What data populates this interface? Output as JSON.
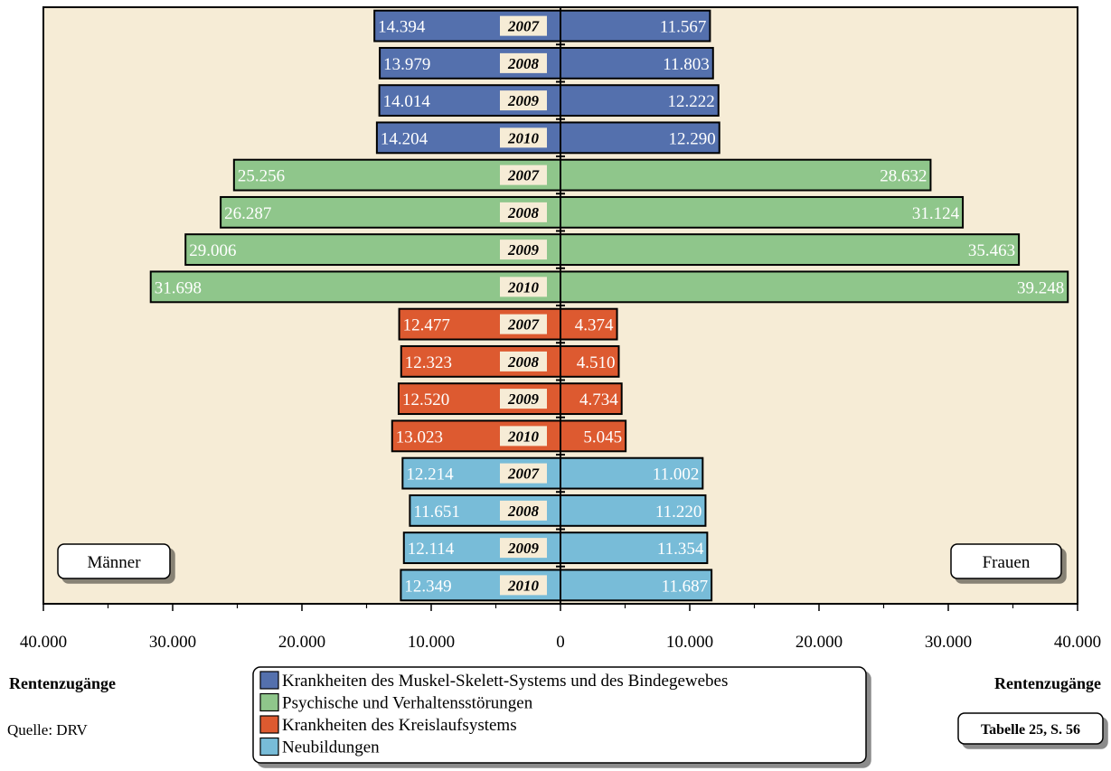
{
  "chart_data": {
    "type": "bar",
    "orientation": "horizontal",
    "layout": "butterfly",
    "left_label": "Männer",
    "right_label": "Frauen",
    "left_axis_title": "Rentenzugänge",
    "right_axis_title": "Rentenzugänge",
    "xlim": [
      -40000,
      40000
    ],
    "x_ticks": [
      {
        "value": -40000,
        "label": "40.000"
      },
      {
        "value": -30000,
        "label": "30.000"
      },
      {
        "value": -20000,
        "label": "20.000"
      },
      {
        "value": -10000,
        "label": "10.000"
      },
      {
        "value": 0,
        "label": "0"
      },
      {
        "value": 10000,
        "label": "10.000"
      },
      {
        "value": 20000,
        "label": "20.000"
      },
      {
        "value": 30000,
        "label": "30.000"
      },
      {
        "value": 40000,
        "label": "40.000"
      }
    ],
    "groups": [
      {
        "name": "Krankheiten des Muskel-Skelett-Systems und des Bindegewebes",
        "color": "#5470ad",
        "rows": [
          {
            "year": "2007",
            "men": 14394,
            "men_label": "14.394",
            "women": 11567,
            "women_label": "11.567"
          },
          {
            "year": "2008",
            "men": 13979,
            "men_label": "13.979",
            "women": 11803,
            "women_label": "11.803"
          },
          {
            "year": "2009",
            "men": 14014,
            "men_label": "14.014",
            "women": 12222,
            "women_label": "12.222"
          },
          {
            "year": "2010",
            "men": 14204,
            "men_label": "14.204",
            "women": 12290,
            "women_label": "12.290"
          }
        ]
      },
      {
        "name": "Psychische und Verhaltensstörungen",
        "color": "#8fc68b",
        "rows": [
          {
            "year": "2007",
            "men": 25256,
            "men_label": "25.256",
            "women": 28632,
            "women_label": "28.632"
          },
          {
            "year": "2008",
            "men": 26287,
            "men_label": "26.287",
            "women": 31124,
            "women_label": "31.124"
          },
          {
            "year": "2009",
            "men": 29006,
            "men_label": "29.006",
            "women": 35463,
            "women_label": "35.463"
          },
          {
            "year": "2010",
            "men": 31698,
            "men_label": "31.698",
            "women": 39248,
            "women_label": "39.248"
          }
        ]
      },
      {
        "name": "Krankheiten des Kreislaufsystems",
        "color": "#dd5a30",
        "rows": [
          {
            "year": "2007",
            "men": 12477,
            "men_label": "12.477",
            "women": 4374,
            "women_label": "4.374"
          },
          {
            "year": "2008",
            "men": 12323,
            "men_label": "12.323",
            "women": 4510,
            "women_label": "4.510"
          },
          {
            "year": "2009",
            "men": 12520,
            "men_label": "12.520",
            "women": 4734,
            "women_label": "4.734"
          },
          {
            "year": "2010",
            "men": 13023,
            "men_label": "13.023",
            "women": 5045,
            "women_label": "5.045"
          }
        ]
      },
      {
        "name": "Neubildungen",
        "color": "#78bcd8",
        "rows": [
          {
            "year": "2007",
            "men": 12214,
            "men_label": "12.214",
            "women": 11002,
            "women_label": "11.002"
          },
          {
            "year": "2008",
            "men": 11651,
            "men_label": "11.651",
            "women": 11220,
            "women_label": "11.220"
          },
          {
            "year": "2009",
            "men": 12114,
            "men_label": "12.114",
            "women": 11354,
            "women_label": "11.354"
          },
          {
            "year": "2010",
            "men": 12349,
            "men_label": "12.349",
            "women": 11687,
            "women_label": "11.687"
          }
        ]
      }
    ],
    "plot_background": "#f6ecd6",
    "year_label_background": "#f6ecd6",
    "source": "Quelle: DRV",
    "table_ref": "Tabelle 25, S. 56"
  }
}
